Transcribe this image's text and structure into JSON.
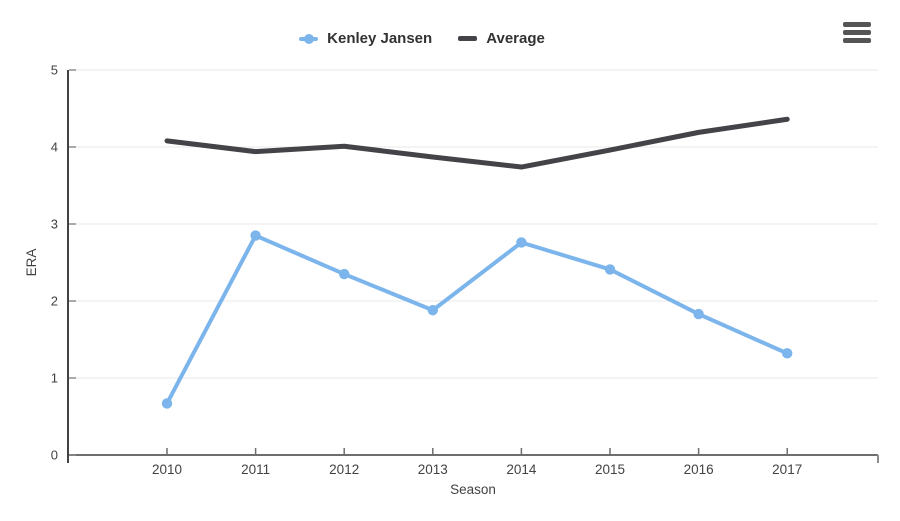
{
  "chart_data": {
    "type": "line",
    "title": "",
    "categories": [
      "2010",
      "2011",
      "2012",
      "2013",
      "2014",
      "2015",
      "2016",
      "2017"
    ],
    "series": [
      {
        "name": "Kenley Jansen",
        "color": "#7cb5ec",
        "line_width": 4,
        "markers": true,
        "values": [
          0.67,
          2.85,
          2.35,
          1.88,
          2.76,
          2.41,
          1.83,
          1.32
        ]
      },
      {
        "name": "Average",
        "color": "#434348",
        "line_width": 5,
        "markers": false,
        "values": [
          4.08,
          3.94,
          4.01,
          3.87,
          3.74,
          3.96,
          4.19,
          4.36
        ]
      }
    ],
    "xlabel": "Season",
    "ylabel": "ERA",
    "ylim": [
      0,
      5
    ],
    "yticks": [
      0,
      1,
      2,
      3,
      4,
      5
    ],
    "grid": true,
    "legend_position": "top"
  },
  "icons": {
    "menu": "hamburger-icon"
  },
  "colors": {
    "background": "#ffffff",
    "axis": "#424242",
    "grid": "#e8e8e8",
    "tick": "#8d8d8d",
    "text": "#424242",
    "legend_text": "#333333",
    "menu_icon": "#555555"
  }
}
